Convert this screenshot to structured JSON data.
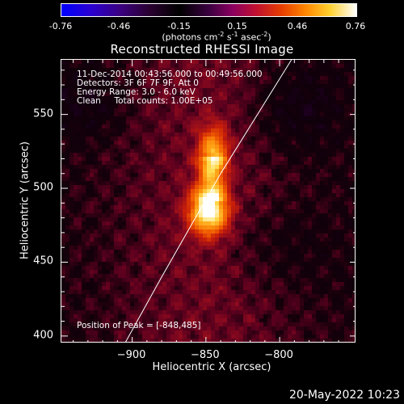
{
  "colorbar": {
    "ticks": [
      "-0.76",
      "-0.46",
      "-0.15",
      "0.15",
      "0.46",
      "0.76"
    ],
    "unit_prefix": "(photons cm",
    "unit_exp1": "-2",
    "unit_mid1": " s",
    "unit_exp2": "-1",
    "unit_mid2": " asec",
    "unit_exp3": "-2",
    "unit_suffix": ")"
  },
  "info": {
    "time_range": "11-Dec-2014 00:43:56.000 to 00:49:56.000",
    "detectors": "Detectors: 3F 6F 7F 9F, Att 0",
    "energy": "Energy Range: 3.0 - 6.0 keV",
    "clean": "Clean     Total counts: 1.00E+05",
    "peak": "Position of Peak = [-848,485]"
  },
  "timestamp": "20-May-2022 10:23",
  "colors": {
    "background": "#000000",
    "foreground": "#ffffff",
    "limb": "#ffffff"
  },
  "chart_data": {
    "type": "heatmap",
    "title": "Reconstructed RHESSI Image",
    "xlabel": "Heliocentric X (arcsec)",
    "ylabel": "Heliocentric Y (arcsec)",
    "xlim": [
      -948,
      -748
    ],
    "ylim": [
      395,
      587
    ],
    "x_ticks": [
      -900,
      -850,
      -800
    ],
    "x_tick_labels": [
      "−900",
      "−850",
      "−800"
    ],
    "y_ticks": [
      400,
      450,
      500,
      550
    ],
    "y_tick_labels": [
      "400",
      "450",
      "500",
      "550"
    ],
    "colorbar_range": [
      -0.76,
      0.76
    ],
    "colormap": "blue-black-red-yellow-white",
    "peak": [
      -848,
      485
    ],
    "sources": [
      {
        "x": -848,
        "y": 485,
        "amplitude": 0.76
      },
      {
        "x": -845,
        "y": 524,
        "amplitude": 0.5
      }
    ],
    "limb_points": [
      [
        -905,
        395
      ],
      [
        -880,
        440
      ],
      [
        -860,
        475
      ],
      [
        -840,
        510
      ],
      [
        -815,
        550
      ],
      [
        -792,
        587
      ]
    ],
    "grid": false
  }
}
